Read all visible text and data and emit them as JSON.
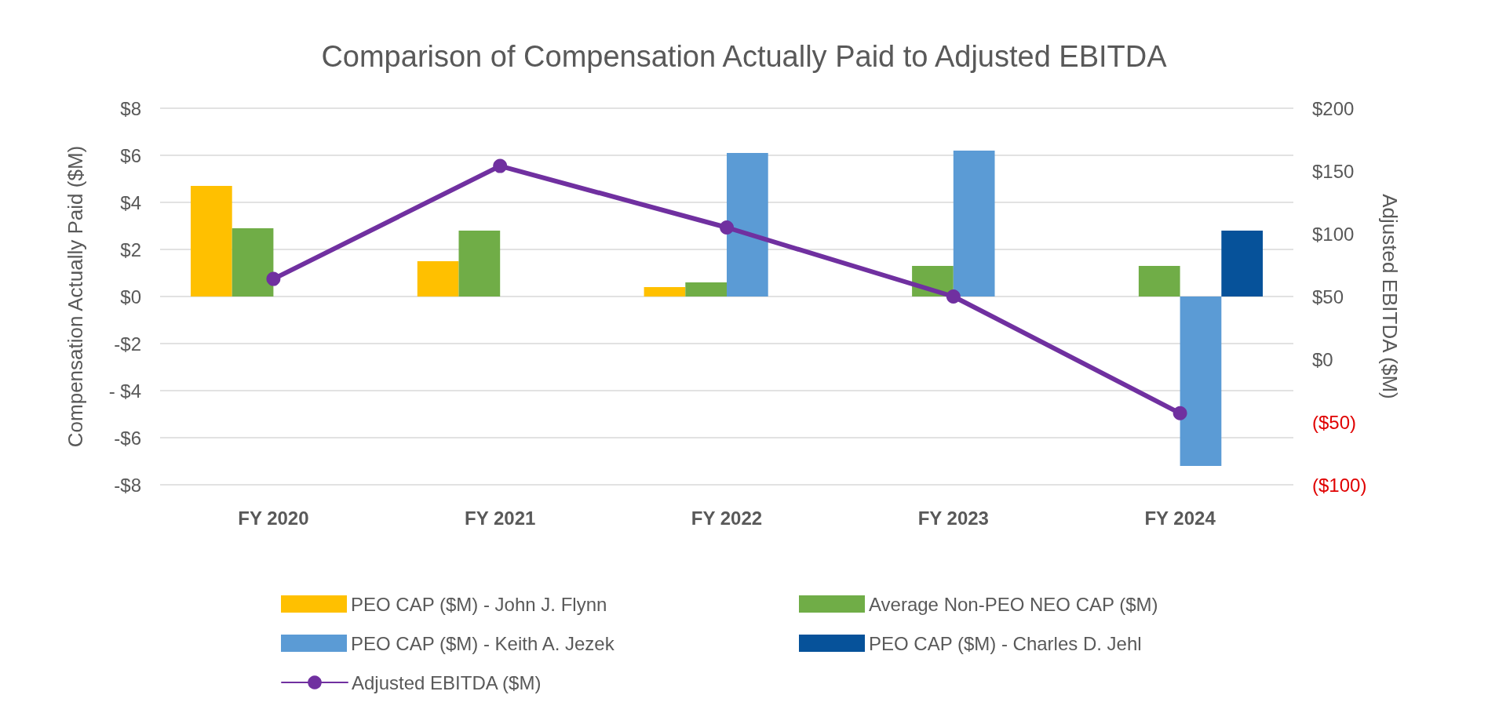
{
  "chart_data": {
    "type": "bar",
    "title": "Comparison of Compensation Actually Paid to Adjusted EBITDA",
    "ylabel": "Compensation Actually Paid ($M)",
    "y2label": "Adjusted EBITDA ($M)",
    "categories": [
      "FY 2020",
      "FY 2021",
      "FY 2022",
      "FY 2023",
      "FY 2024"
    ],
    "series": [
      {
        "name": "PEO CAP ($M) - John J. Flynn",
        "color": "#ffc000",
        "values": [
          4.7,
          1.5,
          0.4,
          null,
          null
        ]
      },
      {
        "name": "Average Non-PEO NEO CAP ($M)",
        "color": "#70ad47",
        "values": [
          2.9,
          2.8,
          0.6,
          1.3,
          1.3
        ]
      },
      {
        "name": "PEO CAP ($M) - Keith A. Jezek",
        "color": "#5b9bd5",
        "values": [
          null,
          null,
          6.1,
          6.2,
          -7.2
        ]
      },
      {
        "name": "PEO CAP ($M) - Charles D. Jehl",
        "color": "#06529a",
        "values": [
          null,
          null,
          null,
          null,
          2.8
        ]
      },
      {
        "name": "Adjusted EBITDA ($M)",
        "type": "line",
        "axis": "y2",
        "color": "#7030a0",
        "marker": "circle",
        "values": [
          64,
          154,
          105,
          50,
          -43
        ]
      }
    ],
    "ylim": [
      -8,
      8
    ],
    "yticks": [
      {
        "value": -8,
        "label": "-$8"
      },
      {
        "value": -6,
        "label": "-$6"
      },
      {
        "value": -4,
        "label": "- $4"
      },
      {
        "value": -2,
        "label": "-$2"
      },
      {
        "value": 0,
        "label": "$0"
      },
      {
        "value": 2,
        "label": "$2"
      },
      {
        "value": 4,
        "label": "$4"
      },
      {
        "value": 6,
        "label": "$6"
      },
      {
        "value": 8,
        "label": "$8"
      }
    ],
    "y2lim": [
      -100,
      200
    ],
    "y2ticks": [
      {
        "value": -100,
        "label": "($100)"
      },
      {
        "value": -50,
        "label": "($50)"
      },
      {
        "value": 0,
        "label": "$0"
      },
      {
        "value": 50,
        "label": "$50"
      },
      {
        "value": 100,
        "label": "$100"
      },
      {
        "value": 150,
        "label": "$150"
      },
      {
        "value": 200,
        "label": "$200"
      }
    ],
    "grid": "y",
    "legend": "bottom"
  }
}
